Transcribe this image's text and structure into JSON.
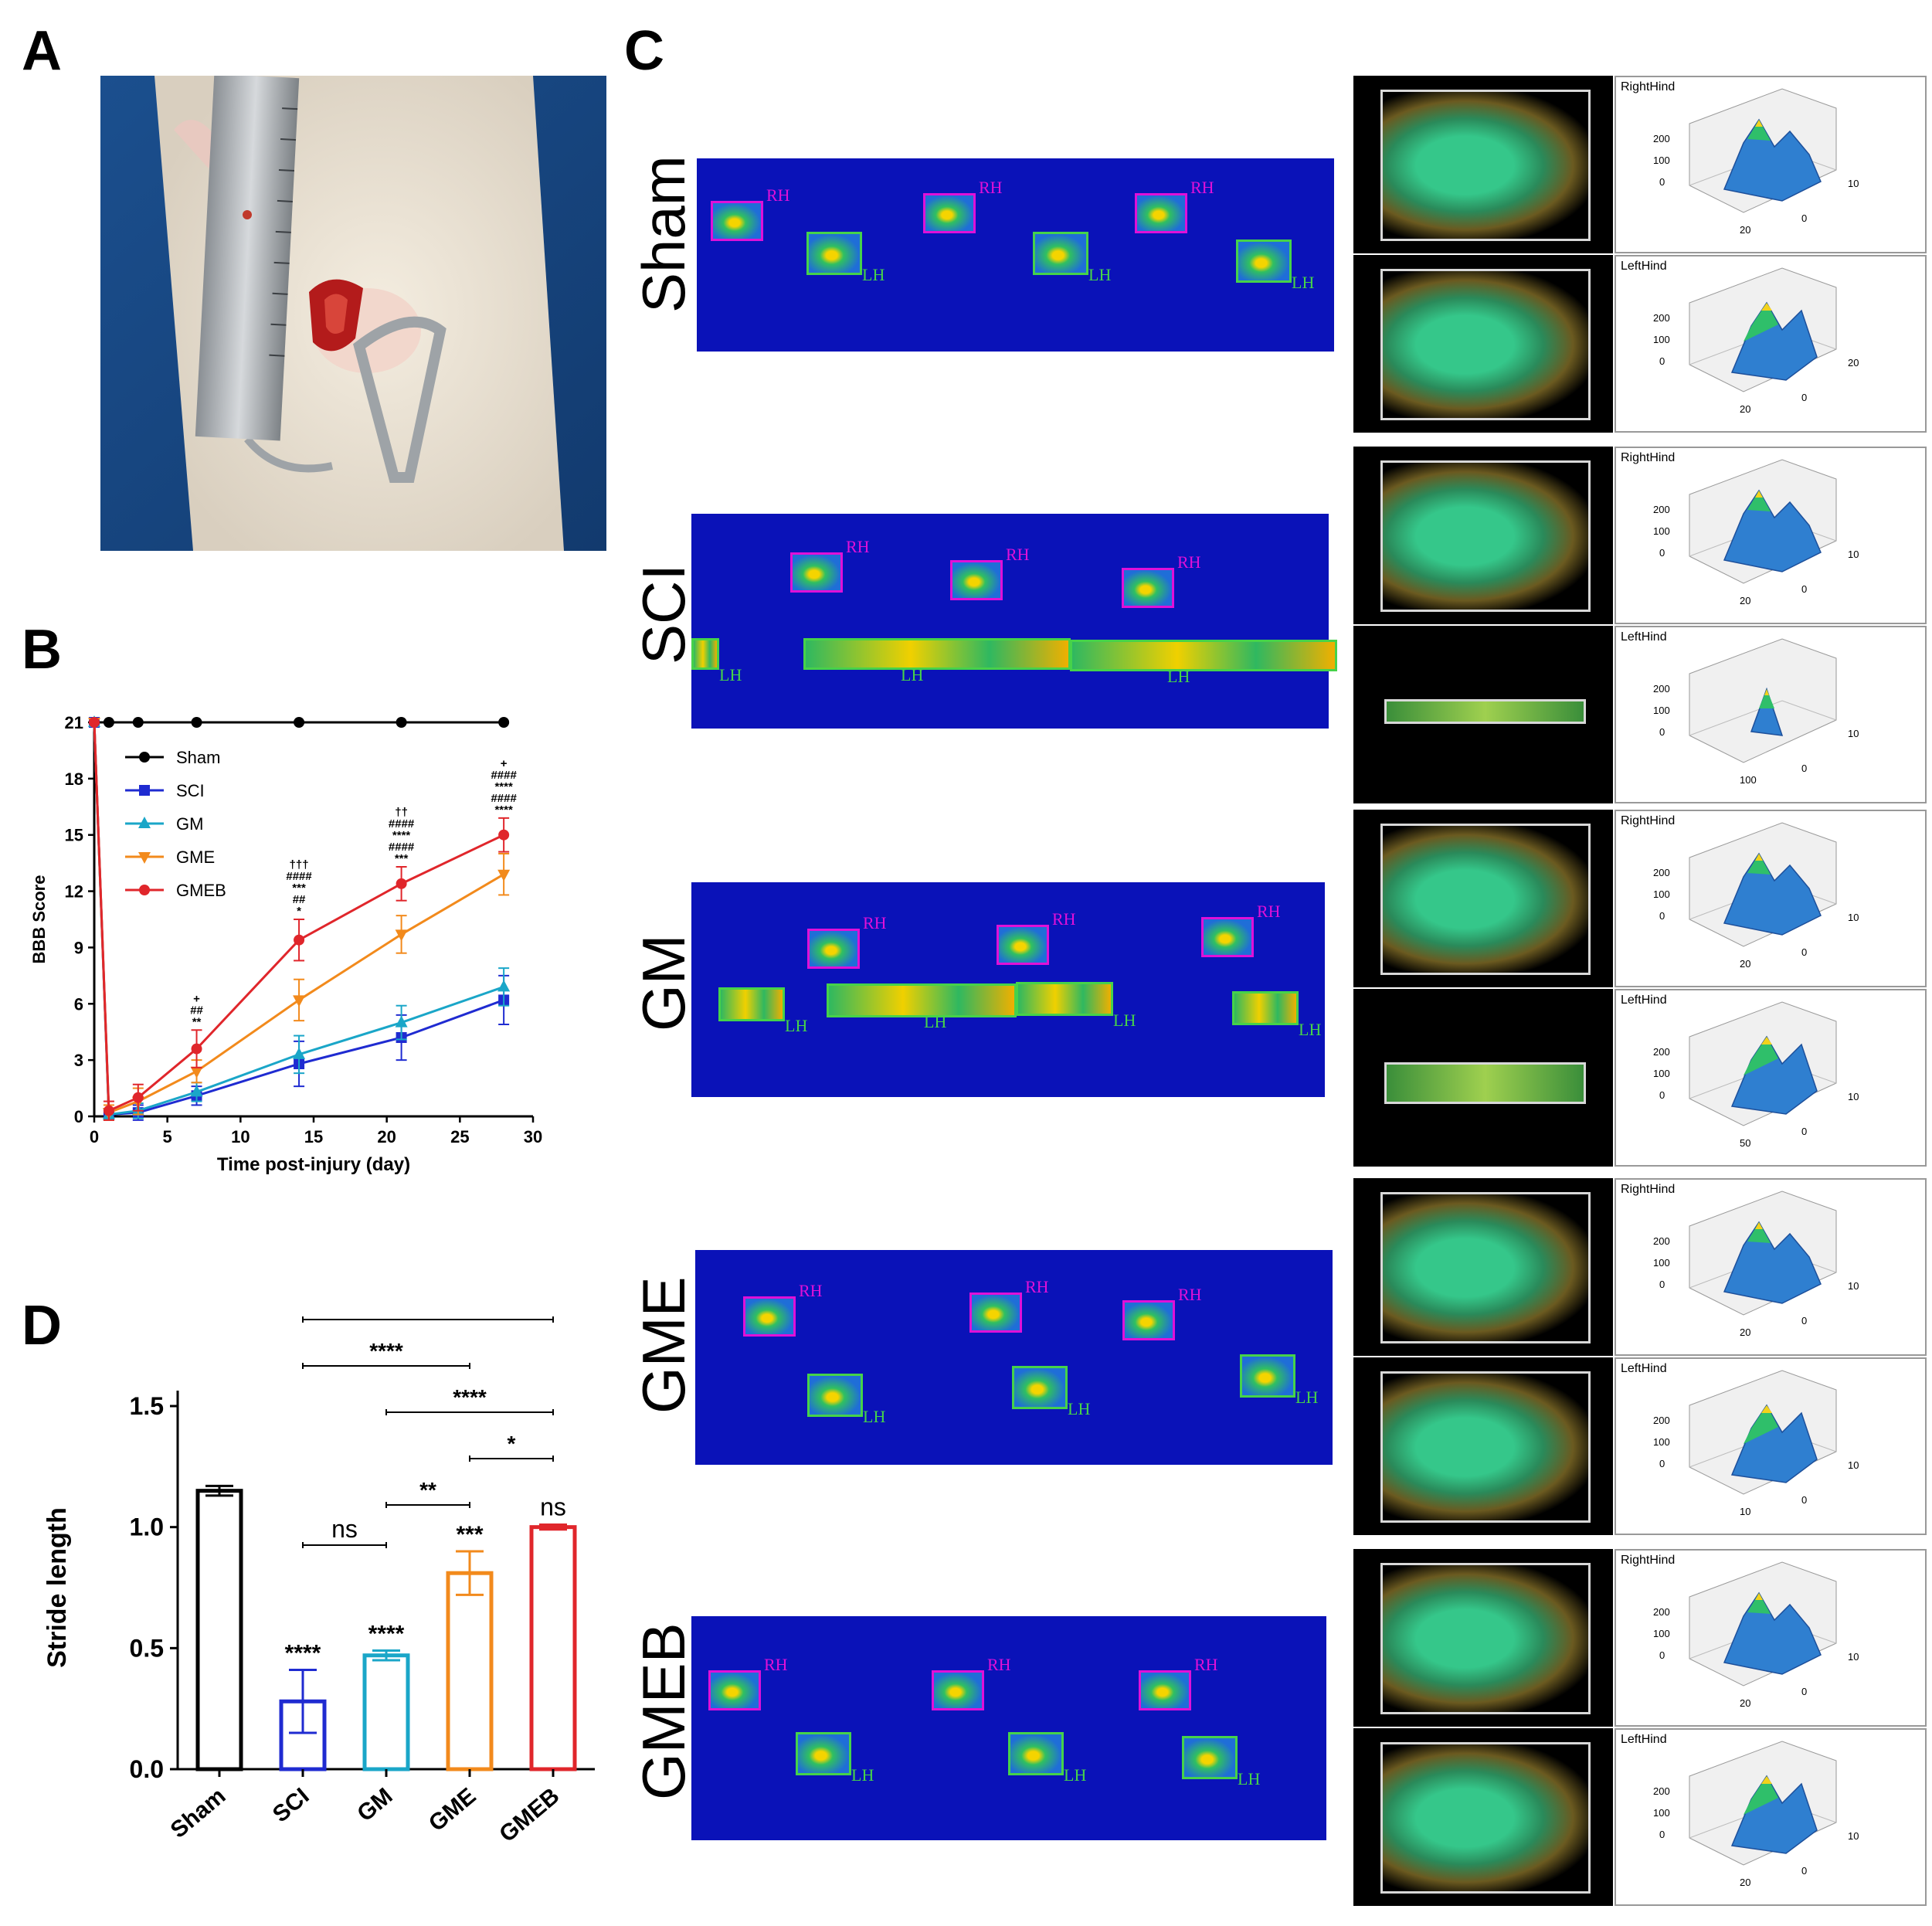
{
  "panels": {
    "a": "A",
    "b": "B",
    "c": "C",
    "d": "D"
  },
  "colors": {
    "Sham": "#000000",
    "SCI": "#1f2bd1",
    "GM": "#1aa6c8",
    "GME": "#f28a1c",
    "GMEB": "#e0262b",
    "strip_background": "#0a12b8",
    "rh_box": "#e010d8",
    "lh_box": "#46d24a"
  },
  "photo": {
    "description_icon": "surgical-photo"
  },
  "chart_data": [
    {
      "type": "line",
      "panel": "B",
      "xlabel": "Time post-injury (day)",
      "ylabel": "BBB Score",
      "xlim": [
        0,
        30
      ],
      "ylim": [
        0,
        21
      ],
      "xticks": [
        0,
        5,
        10,
        15,
        20,
        25,
        30
      ],
      "yticks": [
        0,
        3,
        6,
        9,
        12,
        15,
        18,
        21
      ],
      "legend_position": "top-left",
      "series": [
        {
          "name": "Sham",
          "marker": "circle",
          "x": [
            0,
            1,
            3,
            7,
            14,
            21,
            28
          ],
          "y": [
            21,
            21,
            21,
            21,
            21,
            21,
            21
          ],
          "err": [
            0,
            0,
            0,
            0,
            0,
            0,
            0
          ]
        },
        {
          "name": "SCI",
          "marker": "square",
          "x": [
            0,
            1,
            3,
            7,
            14,
            21,
            28
          ],
          "y": [
            21,
            0.1,
            0.2,
            1.1,
            2.8,
            4.2,
            6.2
          ],
          "err": [
            0,
            0.3,
            0.4,
            0.5,
            1.2,
            1.2,
            1.3
          ]
        },
        {
          "name": "GM",
          "marker": "triangle-up",
          "x": [
            0,
            1,
            3,
            7,
            14,
            21,
            28
          ],
          "y": [
            21,
            0.1,
            0.3,
            1.3,
            3.3,
            5.0,
            6.9
          ],
          "err": [
            0,
            0.3,
            0.4,
            0.5,
            1.0,
            0.9,
            1.0
          ]
        },
        {
          "name": "GME",
          "marker": "triangle-down",
          "x": [
            0,
            1,
            3,
            7,
            14,
            21,
            28
          ],
          "y": [
            21,
            0.2,
            0.8,
            2.4,
            6.2,
            9.7,
            12.9
          ],
          "err": [
            0,
            0.4,
            0.7,
            0.6,
            1.1,
            1.0,
            1.1
          ]
        },
        {
          "name": "GMEB",
          "marker": "circle",
          "x": [
            0,
            1,
            3,
            7,
            14,
            21,
            28
          ],
          "y": [
            21,
            0.3,
            1.0,
            3.6,
            9.4,
            12.4,
            15.0
          ],
          "err": [
            0,
            0.5,
            0.7,
            1.0,
            1.1,
            0.9,
            0.9
          ]
        }
      ],
      "annotations": [
        {
          "x": 7,
          "lines": [
            "+",
            "##",
            "**"
          ]
        },
        {
          "x": 14,
          "lines": [
            "†††",
            "####",
            "***",
            "##",
            "*"
          ]
        },
        {
          "x": 21,
          "lines": [
            "††",
            "####",
            "****",
            "####",
            "***"
          ]
        },
        {
          "x": 28,
          "lines": [
            "+",
            "####",
            "****",
            "####",
            "****"
          ]
        }
      ]
    },
    {
      "type": "bar",
      "panel": "D",
      "categories": [
        "Sham",
        "SCI",
        "GM",
        "GME",
        "GMEB"
      ],
      "values": [
        1.15,
        0.28,
        0.47,
        0.81,
        1.0
      ],
      "errors": [
        0.02,
        0.13,
        0.02,
        0.09,
        0.01
      ],
      "ylabel": "Stride length",
      "xlabel": "",
      "ylim": [
        0,
        1.5
      ],
      "yticks": [
        "0.0",
        "0.5",
        "1.0",
        "1.5"
      ],
      "bar_labels": [
        "",
        "****",
        "****",
        "***",
        "ns"
      ],
      "comparisons": [
        {
          "from": "SCI",
          "to": "GMEB",
          "label": "****"
        },
        {
          "from": "SCI",
          "to": "GME",
          "label": "****"
        },
        {
          "from": "GM",
          "to": "GMEB",
          "label": "****"
        },
        {
          "from": "GME",
          "to": "GMEB",
          "label": "*"
        },
        {
          "from": "GM",
          "to": "GME",
          "label": "**"
        },
        {
          "from": "SCI",
          "to": "GM",
          "label": "ns"
        }
      ]
    }
  ],
  "footprints": {
    "rh_label": "RH",
    "lh_label": "LH",
    "right_hind_label": "RightHind",
    "left_hind_label": "LeftHind",
    "z_ticks": [
      "200",
      "100",
      "0"
    ],
    "groups": [
      {
        "name": "Sham",
        "rh_axes": [
          "20",
          "10",
          "0"
        ],
        "lh_axes": [
          "20",
          "20",
          "0"
        ]
      },
      {
        "name": "SCI",
        "rh_axes": [
          "20",
          "10",
          "0"
        ],
        "lh_axes": [
          "100",
          "10",
          "0"
        ]
      },
      {
        "name": "GM",
        "rh_axes": [
          "20",
          "10",
          "0"
        ],
        "lh_axes": [
          "50",
          "10",
          "0"
        ]
      },
      {
        "name": "GME",
        "rh_axes": [
          "20",
          "10",
          "0"
        ],
        "lh_axes": [
          "10",
          "10",
          "0"
        ]
      },
      {
        "name": "GMEB",
        "rh_axes": [
          "20",
          "10",
          "0"
        ],
        "lh_axes": [
          "20",
          "10",
          "0"
        ]
      }
    ]
  }
}
